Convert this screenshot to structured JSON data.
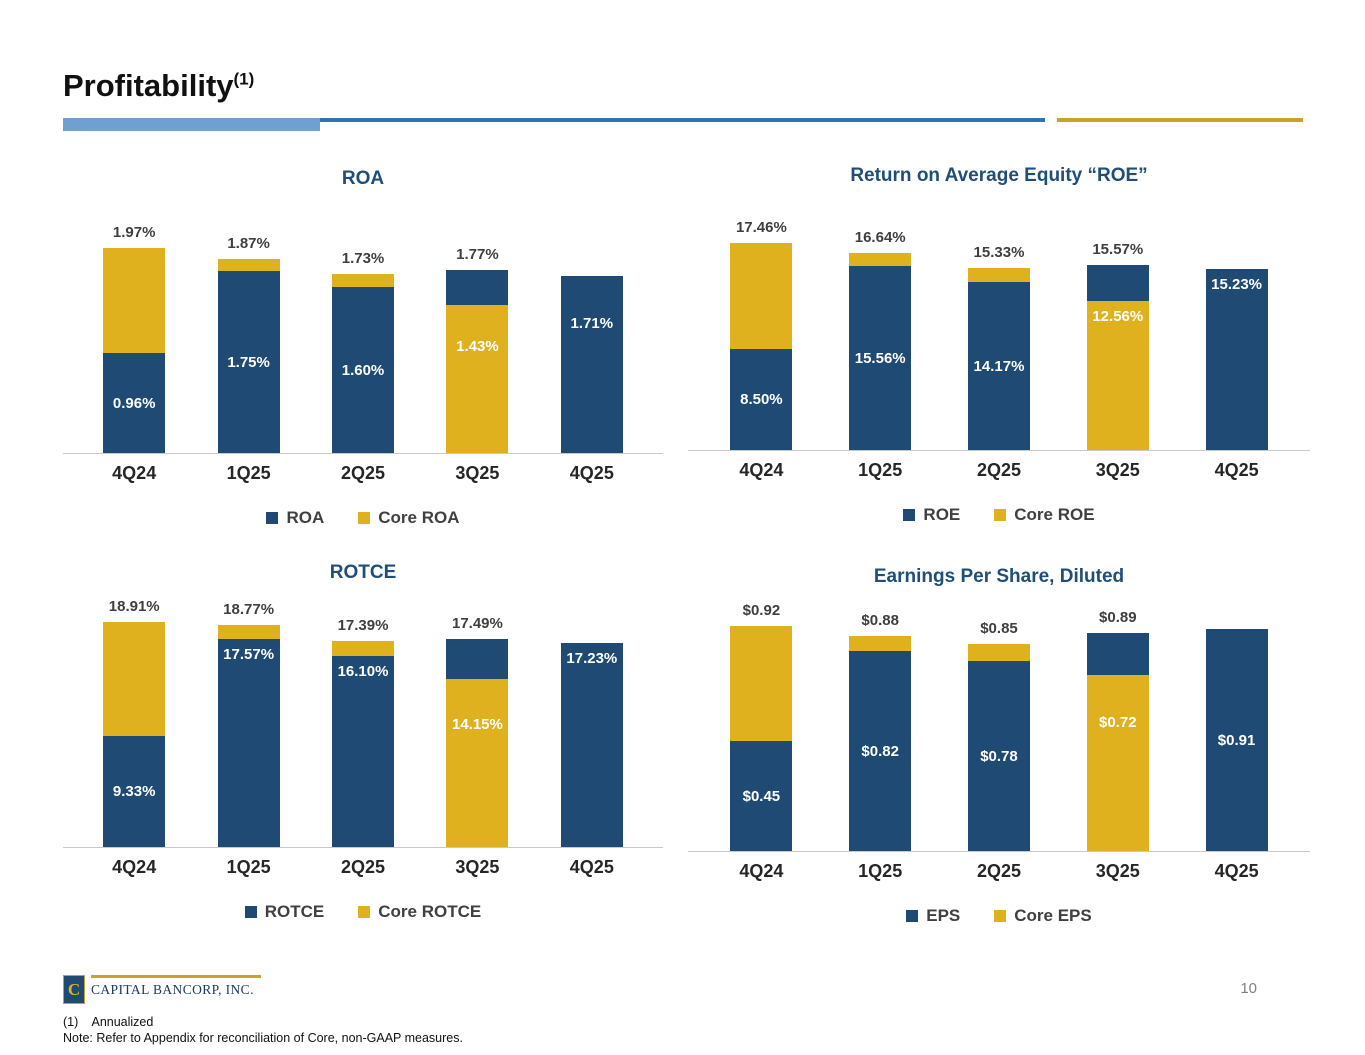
{
  "slide": {
    "title": "Profitability",
    "title_superscript": "(1)",
    "page_number": "10",
    "footnotes": [
      "(1)    Annualized",
      "Note: Refer to Appendix for reconciliation of Core, non-GAAP measures."
    ],
    "logo": {
      "text": "CAPITAL BANCORP, INC.",
      "icon_glyph": "C"
    }
  },
  "colors": {
    "navy": "#1F4A74",
    "gold": "#E0B11F",
    "chart_title": "#1F4E79",
    "divider_blue": "#2E74B5",
    "divider_lightblue": "#6FA0D0",
    "divider_gold": "#C9A227"
  },
  "chart_data": [
    {
      "id": "roa",
      "type": "bar",
      "title": "ROA",
      "unit": "percent",
      "grid": false,
      "legend_position": "bottom",
      "categories": [
        "4Q24",
        "1Q25",
        "2Q25",
        "3Q25",
        "4Q25"
      ],
      "legend": [
        {
          "label": "ROA",
          "color": "navy"
        },
        {
          "label": "Core ROA",
          "color": "gold"
        }
      ],
      "ylim": [
        0,
        2.4
      ],
      "bars": [
        {
          "category": "4Q24",
          "values": {
            "ROA": 0.96,
            "Core ROA": 1.97
          },
          "top_label": "1.97%",
          "segments": [
            {
              "color": "navy",
              "to": 0.96,
              "label": "0.96%",
              "align": "center"
            },
            {
              "color": "gold",
              "to": 1.97
            }
          ]
        },
        {
          "category": "1Q25",
          "values": {
            "ROA": 1.75,
            "Core ROA": 1.87
          },
          "top_label": "1.87%",
          "segments": [
            {
              "color": "navy",
              "to": 1.75,
              "label": "1.75%",
              "align": "center"
            },
            {
              "color": "gold",
              "to": 1.87
            }
          ]
        },
        {
          "category": "2Q25",
          "values": {
            "ROA": 1.6,
            "Core ROA": 1.73
          },
          "top_label": "1.73%",
          "segments": [
            {
              "color": "navy",
              "to": 1.6,
              "label": "1.60%",
              "align": "center"
            },
            {
              "color": "gold",
              "to": 1.73
            }
          ]
        },
        {
          "category": "3Q25",
          "values": {
            "ROA": 1.77,
            "Core ROA": 1.43
          },
          "top_label": "1.77%",
          "segments": [
            {
              "color": "gold",
              "to": 1.43,
              "label": "1.43%",
              "align": "upper"
            },
            {
              "color": "navy",
              "to": 1.77
            }
          ]
        },
        {
          "category": "4Q25",
          "values": {
            "ROA": 1.71
          },
          "segments": [
            {
              "color": "navy",
              "to": 1.71,
              "label": "1.71%",
              "align": "upper"
            }
          ]
        }
      ]
    },
    {
      "id": "roe",
      "type": "bar",
      "title": "Return on Average Equity “ROE”",
      "unit": "percent",
      "grid": false,
      "legend_position": "bottom",
      "categories": [
        "4Q24",
        "1Q25",
        "2Q25",
        "3Q25",
        "4Q25"
      ],
      "legend": [
        {
          "label": "ROE",
          "color": "navy"
        },
        {
          "label": "Core ROE",
          "color": "gold"
        }
      ],
      "ylim": [
        0,
        21
      ],
      "bars": [
        {
          "category": "4Q24",
          "values": {
            "ROE": 8.5,
            "Core ROE": 17.46
          },
          "top_label": "17.46%",
          "segments": [
            {
              "color": "navy",
              "to": 8.5,
              "label": "8.50%",
              "align": "center"
            },
            {
              "color": "gold",
              "to": 17.46
            }
          ]
        },
        {
          "category": "1Q25",
          "values": {
            "ROE": 15.56,
            "Core ROE": 16.64
          },
          "top_label": "16.64%",
          "segments": [
            {
              "color": "navy",
              "to": 15.56,
              "label": "15.56%",
              "align": "center"
            },
            {
              "color": "gold",
              "to": 16.64
            }
          ]
        },
        {
          "category": "2Q25",
          "values": {
            "ROE": 14.17,
            "Core ROE": 15.33
          },
          "top_label": "15.33%",
          "segments": [
            {
              "color": "navy",
              "to": 14.17,
              "label": "14.17%",
              "align": "center"
            },
            {
              "color": "gold",
              "to": 15.33
            }
          ]
        },
        {
          "category": "3Q25",
          "values": {
            "ROE": 15.57,
            "Core ROE": 12.56
          },
          "top_label": "15.57%",
          "segments": [
            {
              "color": "gold",
              "to": 12.56,
              "label": "12.56%",
              "align": "top"
            },
            {
              "color": "navy",
              "to": 15.57
            }
          ]
        },
        {
          "category": "4Q25",
          "values": {
            "ROE": 15.23
          },
          "segments": [
            {
              "color": "navy",
              "to": 15.23,
              "label": "15.23%",
              "align": "top"
            }
          ]
        }
      ]
    },
    {
      "id": "rotce",
      "type": "bar",
      "title": "ROTCE",
      "unit": "percent",
      "grid": false,
      "legend_position": "bottom",
      "categories": [
        "4Q24",
        "1Q25",
        "2Q25",
        "3Q25",
        "4Q25"
      ],
      "legend": [
        {
          "label": "ROTCE",
          "color": "navy"
        },
        {
          "label": "Core ROTCE",
          "color": "gold"
        }
      ],
      "ylim": [
        0,
        21
      ],
      "bars": [
        {
          "category": "4Q24",
          "values": {
            "ROTCE": 9.33,
            "Core ROTCE": 18.91
          },
          "top_label": "18.91%",
          "segments": [
            {
              "color": "navy",
              "to": 9.33,
              "label": "9.33%",
              "align": "center"
            },
            {
              "color": "gold",
              "to": 18.91
            }
          ]
        },
        {
          "category": "1Q25",
          "values": {
            "ROTCE": 17.57,
            "Core ROTCE": 18.77
          },
          "top_label": "18.77%",
          "segments": [
            {
              "color": "navy",
              "to": 17.57,
              "label": "17.57%",
              "align": "top"
            },
            {
              "color": "gold",
              "to": 18.77
            }
          ]
        },
        {
          "category": "2Q25",
          "values": {
            "ROTCE": 16.1,
            "Core ROTCE": 17.39
          },
          "top_label": "17.39%",
          "segments": [
            {
              "color": "navy",
              "to": 16.1,
              "label": "16.10%",
              "align": "top"
            },
            {
              "color": "gold",
              "to": 17.39
            }
          ]
        },
        {
          "category": "3Q25",
          "values": {
            "ROTCE": 17.49,
            "Core ROTCE": 14.15
          },
          "top_label": "17.49%",
          "segments": [
            {
              "color": "gold",
              "to": 14.15,
              "label": "14.15%",
              "align": "upper"
            },
            {
              "color": "navy",
              "to": 17.49
            }
          ]
        },
        {
          "category": "4Q25",
          "values": {
            "ROTCE": 17.23
          },
          "segments": [
            {
              "color": "navy",
              "to": 17.23,
              "label": "17.23%",
              "align": "top"
            }
          ]
        }
      ]
    },
    {
      "id": "eps",
      "type": "bar",
      "title": "Earnings Per Share, Diluted",
      "unit": "dollars",
      "grid": false,
      "legend_position": "bottom",
      "categories": [
        "4Q24",
        "1Q25",
        "2Q25",
        "3Q25",
        "4Q25"
      ],
      "legend": [
        {
          "label": "EPS",
          "color": "navy"
        },
        {
          "label": "Core EPS",
          "color": "gold"
        }
      ],
      "ylim": [
        0,
        1.02
      ],
      "bars": [
        {
          "category": "4Q24",
          "values": {
            "EPS": 0.45,
            "Core EPS": 0.92
          },
          "top_label": "$0.92",
          "segments": [
            {
              "color": "navy",
              "to": 0.45,
              "label": "$0.45",
              "align": "center"
            },
            {
              "color": "gold",
              "to": 0.92
            }
          ]
        },
        {
          "category": "1Q25",
          "values": {
            "EPS": 0.82,
            "Core EPS": 0.88
          },
          "top_label": "$0.88",
          "segments": [
            {
              "color": "navy",
              "to": 0.82,
              "label": "$0.82",
              "align": "center"
            },
            {
              "color": "gold",
              "to": 0.88
            }
          ]
        },
        {
          "category": "2Q25",
          "values": {
            "EPS": 0.78,
            "Core EPS": 0.85
          },
          "top_label": "$0.85",
          "segments": [
            {
              "color": "navy",
              "to": 0.78,
              "label": "$0.78",
              "align": "center"
            },
            {
              "color": "gold",
              "to": 0.85
            }
          ]
        },
        {
          "category": "3Q25",
          "values": {
            "EPS": 0.89,
            "Core EPS": 0.72
          },
          "top_label": "$0.89",
          "segments": [
            {
              "color": "gold",
              "to": 0.72,
              "label": "$0.72",
              "align": "upper"
            },
            {
              "color": "navy",
              "to": 0.89
            }
          ]
        },
        {
          "category": "4Q25",
          "values": {
            "EPS": 0.91
          },
          "segments": [
            {
              "color": "navy",
              "to": 0.91,
              "label": "$0.91",
              "align": "center"
            }
          ]
        }
      ]
    }
  ]
}
